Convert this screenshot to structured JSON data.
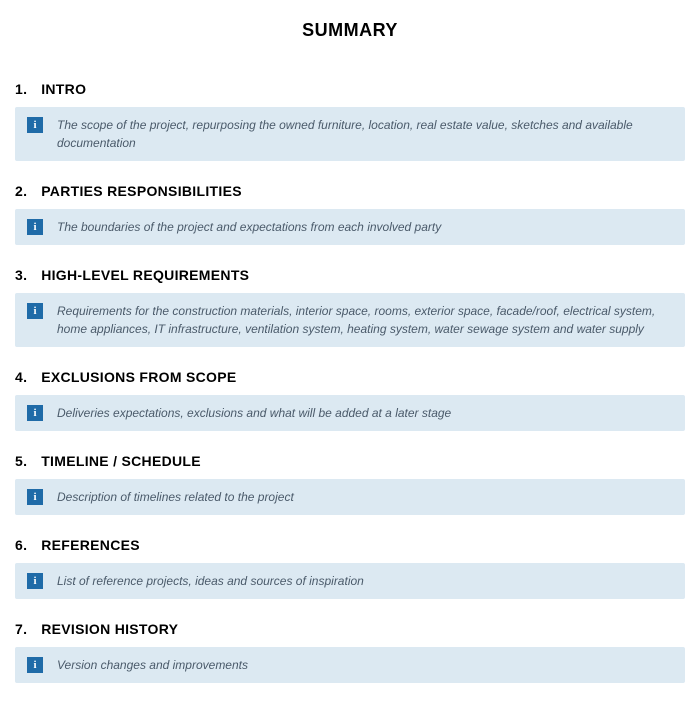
{
  "title": "SUMMARY",
  "info_icon_glyph": "i",
  "colors": {
    "info_box_bg": "#dce9f2",
    "info_icon_bg": "#1f6ba8",
    "info_text": "#4a5a6a",
    "heading": "#000000",
    "background": "#ffffff"
  },
  "sections": [
    {
      "number": "1.",
      "heading": "INTRO",
      "description": "The scope of the project, repurposing the owned furniture, location, real estate value, sketches and available documentation"
    },
    {
      "number": "2.",
      "heading": "PARTIES RESPONSIBILITIES",
      "description": "The boundaries of the project and expectations from each involved party"
    },
    {
      "number": "3.",
      "heading": "HIGH-LEVEL REQUIREMENTS",
      "description": "Requirements for the construction materials, interior space, rooms, exterior space, facade/roof, electrical system, home appliances, IT infrastructure, ventilation system, heating system, water sewage system and water supply"
    },
    {
      "number": "4.",
      "heading": "EXCLUSIONS FROM SCOPE",
      "description": "Deliveries expectations, exclusions and what will be added at a later stage"
    },
    {
      "number": "5.",
      "heading": "TIMELINE / SCHEDULE",
      "description": "Description of timelines related to the project"
    },
    {
      "number": "6.",
      "heading": "REFERENCES",
      "description": "List of reference projects, ideas and sources of inspiration"
    },
    {
      "number": "7.",
      "heading": "REVISION HISTORY",
      "description": "Version changes and improvements"
    }
  ]
}
